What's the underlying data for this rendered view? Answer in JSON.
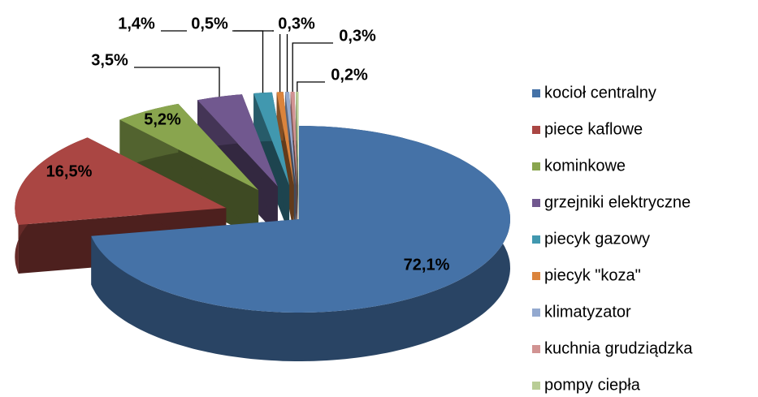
{
  "chart_data": {
    "type": "pie3d",
    "categories": [
      "kocioł centralny",
      "piece kaflowe",
      "kominkowe",
      "grzejniki elektryczne",
      "piecyk gazowy",
      "piecyk \"koza\"",
      "klimatyzator",
      "kuchnia grudziądzka",
      "pompy ciepła"
    ],
    "values": [
      72.1,
      16.5,
      5.2,
      3.5,
      1.4,
      0.5,
      0.3,
      0.3,
      0.2
    ],
    "value_labels": [
      "72,1%",
      "16,5%",
      "5,2%",
      "3,5%",
      "1,4%",
      "0,5%",
      "0,3%",
      "0,3%",
      "0,2%"
    ],
    "colors": [
      "#4572a7",
      "#aa4643",
      "#89a54e",
      "#71588f",
      "#4198af",
      "#db843d",
      "#93a9cf",
      "#d19392",
      "#b9cd96"
    ],
    "legend": "right"
  }
}
